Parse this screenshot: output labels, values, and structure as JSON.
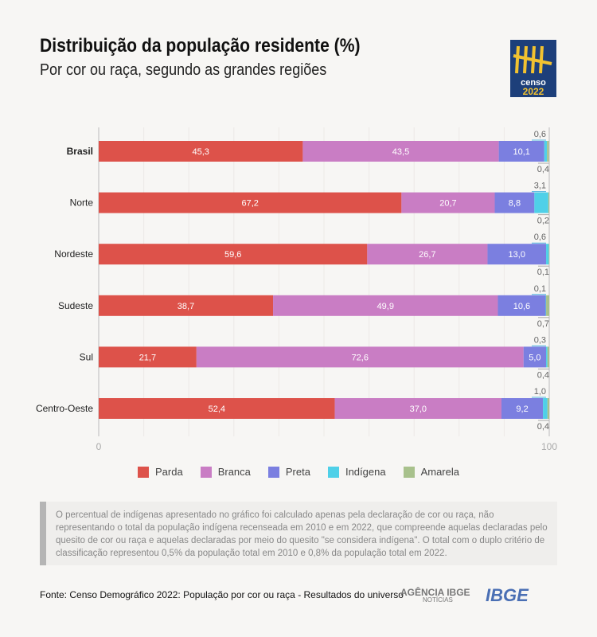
{
  "header": {
    "title": "Distribuição da população residente (%)",
    "subtitle": "Por cor ou raça, segundo as grandes regiões"
  },
  "logo": {
    "text1": "censo",
    "text2": "2022",
    "bg": "#1d3f7a",
    "accent": "#f2c230"
  },
  "chart_data": {
    "type": "bar",
    "orientation": "horizontal",
    "stacked": true,
    "categories": [
      "Brasil",
      "Norte",
      "Nordeste",
      "Sudeste",
      "Sul",
      "Centro-Oeste"
    ],
    "series": [
      {
        "name": "Parda",
        "color": "#dd524a",
        "values": [
          45.3,
          67.2,
          59.6,
          38.7,
          21.7,
          52.4
        ]
      },
      {
        "name": "Branca",
        "color": "#c97dc4",
        "values": [
          43.5,
          20.7,
          26.7,
          49.9,
          72.6,
          37.0
        ]
      },
      {
        "name": "Preta",
        "color": "#7b7fe0",
        "values": [
          10.1,
          8.8,
          13.0,
          10.6,
          5.0,
          9.2
        ]
      },
      {
        "name": "Indígena",
        "color": "#4fd0e8",
        "values": [
          0.6,
          3.1,
          0.6,
          0.1,
          0.3,
          1.0
        ]
      },
      {
        "name": "Amarela",
        "color": "#a8c18c",
        "values": [
          0.4,
          0.2,
          0.1,
          0.7,
          0.4,
          0.4
        ]
      }
    ],
    "labels": [
      [
        "45,3",
        "43,5",
        "10,1",
        "0,6",
        "0,4"
      ],
      [
        "67,2",
        "20,7",
        "8,8",
        "3,1",
        "0,2"
      ],
      [
        "59,6",
        "26,7",
        "13,0",
        "0,6",
        "0,1"
      ],
      [
        "38,7",
        "49,9",
        "10,6",
        "0,1",
        "0,7"
      ],
      [
        "21,7",
        "72,6",
        "5,0",
        "0,3",
        "0,4"
      ],
      [
        "52,4",
        "37,0",
        "9,2",
        "1,0",
        "0,4"
      ]
    ],
    "xlim": [
      0,
      100
    ],
    "xticks": [
      "0",
      "100"
    ],
    "grid": true,
    "legend": "bottom"
  },
  "note": "O percentual de indígenas apresentado no gráfico foi calculado apenas pela declaração de cor ou raça, não representando o total da população indígena recenseada em 2010 e em 2022, que compreende aquelas declaradas pelo quesito de cor ou raça e aquelas declaradas por meio do quesito \"se considera indígena\". O total com o duplo critério de classificação representou 0,5% da população total em 2010 e 0,8% da população total em 2022.",
  "footer": {
    "source": "Fonte: Censo Demográfico 2022: População por cor ou raça - Resultados do universo",
    "agencia": "AGÊNCIA IBGE",
    "noticias": "NOTÍCIAS",
    "ibge": "IBGE"
  }
}
